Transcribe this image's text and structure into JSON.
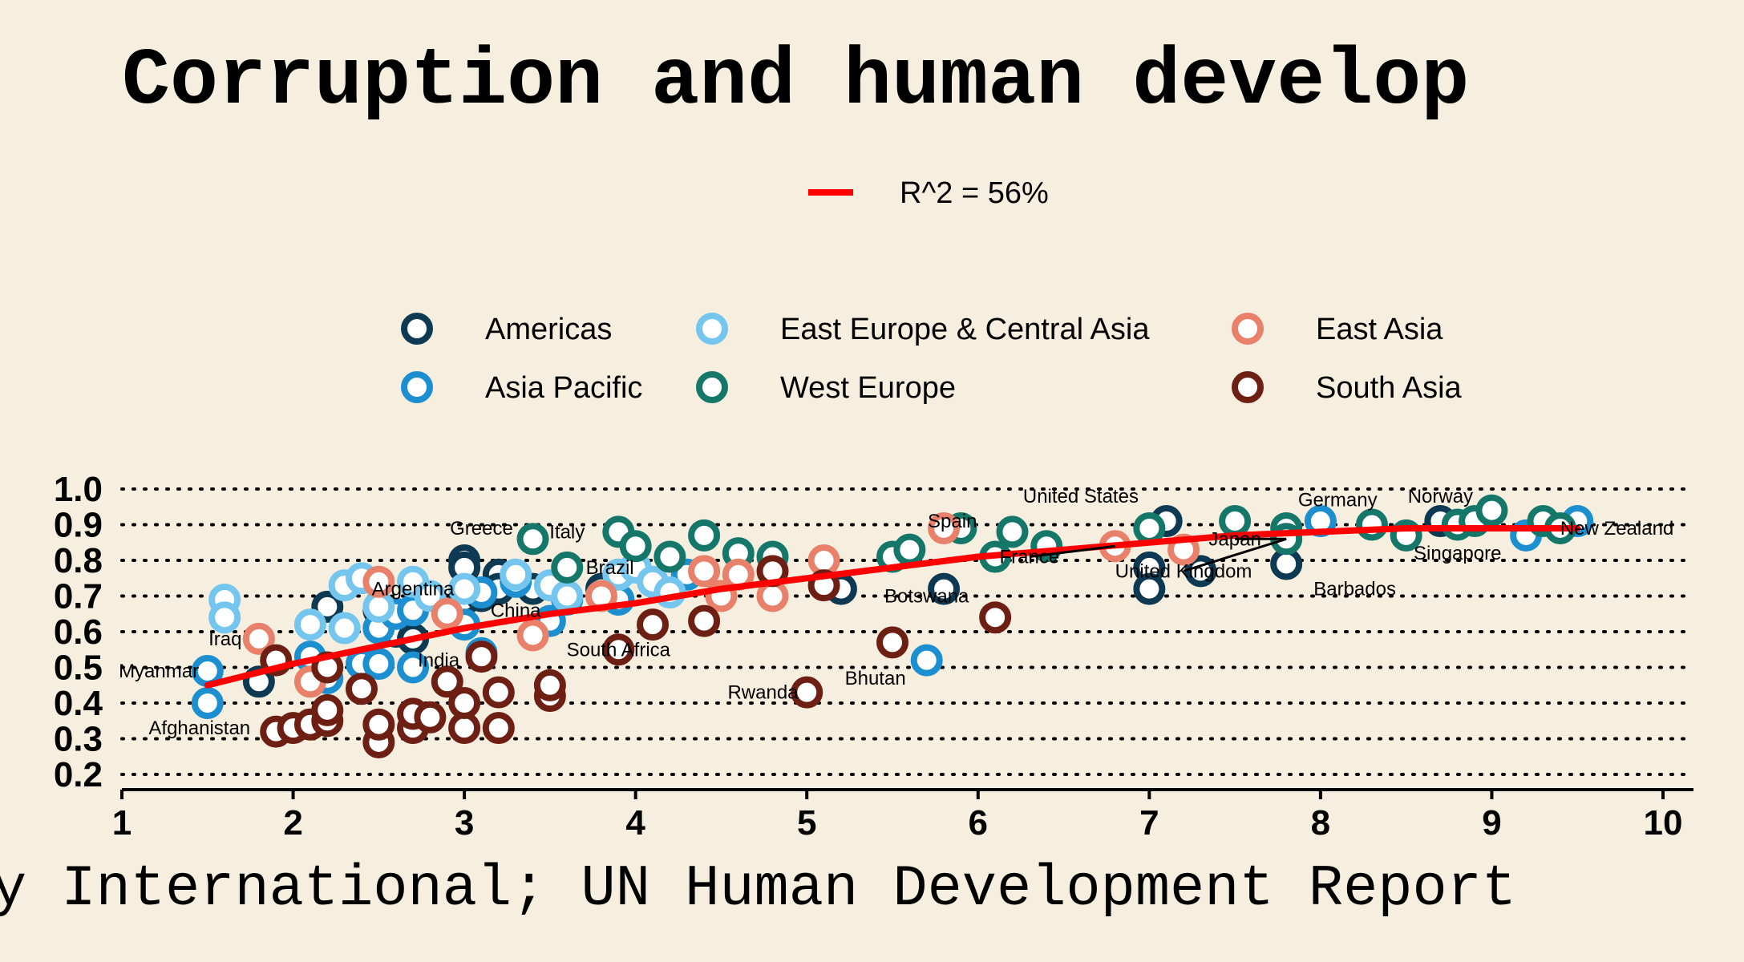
{
  "chart_data": {
    "type": "scatter",
    "title": "Corruption and human develop",
    "source": "y International; UN Human Development Report",
    "fit_label": "R^2 = 56%",
    "xlim": [
      1,
      10.2
    ],
    "ylim": [
      0.18,
      1.04
    ],
    "x_ticks": [
      1,
      2,
      3,
      4,
      5,
      6,
      7,
      8,
      9,
      10
    ],
    "y_ticks": [
      0.2,
      0.3,
      0.4,
      0.5,
      0.6,
      0.7,
      0.8,
      0.9,
      1.0
    ],
    "x_tick_labels": [
      "1",
      "2",
      "3",
      "4",
      "5",
      "6",
      "7",
      "8",
      "9",
      "10"
    ],
    "y_tick_labels": [
      "0.2",
      "0.3",
      "0.4",
      "0.5",
      "0.6",
      "0.7",
      "0.8",
      "0.9",
      "1.0"
    ],
    "grid": "horizontal-dotted",
    "legend_placement": "top-center",
    "colors": {
      "background": "#f6efe0",
      "fit_line": "#ff0000",
      "marker_fill": "#ffffff"
    },
    "series": [
      {
        "name": "Americas",
        "color": "#0d3a52",
        "points": [
          [
            2.2,
            0.67
          ],
          [
            3.0,
            0.8
          ],
          [
            3.0,
            0.78
          ],
          [
            3.0,
            0.69
          ],
          [
            3.2,
            0.76
          ],
          [
            3.4,
            0.72
          ],
          [
            3.1,
            0.7
          ],
          [
            2.6,
            0.6
          ],
          [
            2.7,
            0.58
          ],
          [
            3.2,
            0.72
          ],
          [
            3.8,
            0.72
          ],
          [
            5.2,
            0.72
          ],
          [
            5.8,
            0.72
          ],
          [
            7.1,
            0.91
          ],
          [
            7.0,
            0.78
          ],
          [
            7.0,
            0.72
          ],
          [
            7.3,
            0.77
          ],
          [
            7.8,
            0.79
          ],
          [
            8.7,
            0.91
          ],
          [
            1.8,
            0.46
          ],
          [
            2.5,
            0.66
          ]
        ]
      },
      {
        "name": "Asia Pacific",
        "color": "#1b8fd0",
        "points": [
          [
            1.5,
            0.49
          ],
          [
            1.5,
            0.4
          ],
          [
            2.1,
            0.53
          ],
          [
            2.2,
            0.47
          ],
          [
            2.4,
            0.51
          ],
          [
            2.5,
            0.51
          ],
          [
            2.5,
            0.61
          ],
          [
            2.6,
            0.65
          ],
          [
            2.7,
            0.66
          ],
          [
            2.7,
            0.5
          ],
          [
            3.0,
            0.62
          ],
          [
            3.1,
            0.71
          ],
          [
            3.1,
            0.54
          ],
          [
            3.3,
            0.74
          ],
          [
            3.5,
            0.63
          ],
          [
            3.6,
            0.69
          ],
          [
            3.9,
            0.69
          ],
          [
            4.3,
            0.76
          ],
          [
            5.7,
            0.52
          ],
          [
            8.0,
            0.91
          ],
          [
            9.2,
            0.87
          ],
          [
            9.5,
            0.91
          ]
        ]
      },
      {
        "name": "East Europe & Central Asia",
        "color": "#74c6ef",
        "points": [
          [
            1.6,
            0.69
          ],
          [
            1.6,
            0.64
          ],
          [
            2.1,
            0.62
          ],
          [
            2.3,
            0.61
          ],
          [
            2.3,
            0.73
          ],
          [
            2.4,
            0.75
          ],
          [
            2.5,
            0.67
          ],
          [
            2.7,
            0.74
          ],
          [
            2.8,
            0.7
          ],
          [
            3.0,
            0.72
          ],
          [
            3.3,
            0.76
          ],
          [
            3.5,
            0.73
          ],
          [
            3.6,
            0.7
          ],
          [
            3.9,
            0.76
          ],
          [
            4.0,
            0.78
          ],
          [
            4.1,
            0.74
          ],
          [
            4.2,
            0.71
          ]
        ]
      },
      {
        "name": "West Europe",
        "color": "#15766a",
        "points": [
          [
            3.4,
            0.86
          ],
          [
            3.6,
            0.78
          ],
          [
            3.9,
            0.88
          ],
          [
            4.0,
            0.84
          ],
          [
            4.2,
            0.81
          ],
          [
            4.4,
            0.87
          ],
          [
            4.6,
            0.82
          ],
          [
            4.8,
            0.81
          ],
          [
            5.5,
            0.81
          ],
          [
            5.6,
            0.83
          ],
          [
            5.9,
            0.89
          ],
          [
            6.1,
            0.81
          ],
          [
            6.2,
            0.88
          ],
          [
            6.4,
            0.84
          ],
          [
            7.0,
            0.89
          ],
          [
            7.5,
            0.91
          ],
          [
            7.8,
            0.89
          ],
          [
            7.8,
            0.86
          ],
          [
            8.3,
            0.9
          ],
          [
            8.5,
            0.87
          ],
          [
            8.8,
            0.9
          ],
          [
            8.9,
            0.91
          ],
          [
            9.0,
            0.94
          ],
          [
            9.3,
            0.91
          ],
          [
            9.4,
            0.89
          ]
        ]
      },
      {
        "name": "East Asia",
        "color": "#e9806a",
        "points": [
          [
            1.8,
            0.58
          ],
          [
            2.1,
            0.46
          ],
          [
            2.5,
            0.74
          ],
          [
            2.9,
            0.65
          ],
          [
            3.4,
            0.59
          ],
          [
            3.8,
            0.7
          ],
          [
            4.4,
            0.77
          ],
          [
            4.5,
            0.7
          ],
          [
            4.6,
            0.76
          ],
          [
            4.8,
            0.7
          ],
          [
            5.1,
            0.8
          ],
          [
            5.8,
            0.89
          ],
          [
            6.8,
            0.84
          ],
          [
            7.2,
            0.83
          ]
        ]
      },
      {
        "name": "South Asia",
        "color": "#6e1f14",
        "points": [
          [
            1.9,
            0.32
          ],
          [
            1.9,
            0.52
          ],
          [
            2.0,
            0.33
          ],
          [
            2.1,
            0.34
          ],
          [
            2.2,
            0.35
          ],
          [
            2.2,
            0.38
          ],
          [
            2.2,
            0.5
          ],
          [
            2.4,
            0.44
          ],
          [
            2.5,
            0.29
          ],
          [
            2.5,
            0.34
          ],
          [
            2.7,
            0.33
          ],
          [
            2.7,
            0.37
          ],
          [
            2.8,
            0.36
          ],
          [
            2.9,
            0.46
          ],
          [
            3.0,
            0.33
          ],
          [
            3.0,
            0.4
          ],
          [
            3.1,
            0.53
          ],
          [
            3.2,
            0.33
          ],
          [
            3.2,
            0.43
          ],
          [
            3.5,
            0.42
          ],
          [
            3.5,
            0.45
          ],
          [
            3.9,
            0.55
          ],
          [
            4.1,
            0.62
          ],
          [
            4.4,
            0.63
          ],
          [
            4.8,
            0.77
          ],
          [
            5.0,
            0.43
          ],
          [
            5.1,
            0.73
          ],
          [
            5.5,
            0.57
          ],
          [
            6.1,
            0.64
          ]
        ]
      }
    ],
    "fit_line": [
      [
        1.5,
        0.45
      ],
      [
        2.0,
        0.51
      ],
      [
        2.5,
        0.56
      ],
      [
        3.0,
        0.61
      ],
      [
        3.5,
        0.65
      ],
      [
        4.0,
        0.68
      ],
      [
        4.5,
        0.72
      ],
      [
        5.0,
        0.75
      ],
      [
        5.5,
        0.78
      ],
      [
        6.0,
        0.81
      ],
      [
        6.5,
        0.83
      ],
      [
        7.0,
        0.85
      ],
      [
        7.5,
        0.87
      ],
      [
        8.0,
        0.88
      ],
      [
        8.5,
        0.89
      ],
      [
        9.0,
        0.89
      ],
      [
        9.5,
        0.89
      ]
    ],
    "annotations": [
      {
        "label": "Myanmar",
        "x": 1.5,
        "y": 0.49,
        "dx": -0.05,
        "dy": 0.0,
        "anchor": "end"
      },
      {
        "label": "Afghanistan",
        "x": 1.5,
        "y": 0.4,
        "dx": 0.25,
        "dy": -0.07,
        "anchor": "end"
      },
      {
        "label": "Iraq",
        "x": 1.6,
        "y": 0.64,
        "dx": 0.1,
        "dy": -0.06,
        "anchor": "end"
      },
      {
        "label": "Argentina",
        "x": 2.5,
        "y": 0.66,
        "dx": 0.2,
        "dy": 0.06,
        "anchor": "middle"
      },
      {
        "label": "Greece",
        "x": 3.0,
        "y": 0.8,
        "dx": 0.1,
        "dy": 0.09,
        "anchor": "middle"
      },
      {
        "label": "Italy",
        "x": 3.9,
        "y": 0.88,
        "dx": -0.3,
        "dy": 0.0,
        "anchor": "middle"
      },
      {
        "label": "Brazil",
        "x": 3.6,
        "y": 0.78,
        "dx": 0.25,
        "dy": 0.0,
        "anchor": "middle"
      },
      {
        "label": "China",
        "x": 3.3,
        "y": 0.72,
        "dx": 0.0,
        "dy": -0.06,
        "anchor": "middle"
      },
      {
        "label": "India",
        "x": 2.9,
        "y": 0.46,
        "dx": -0.05,
        "dy": 0.06,
        "anchor": "middle"
      },
      {
        "label": "South Africa",
        "x": 3.9,
        "y": 0.55,
        "dx": 0.0,
        "dy": 0.0,
        "anchor": "middle"
      },
      {
        "label": "Rwanda",
        "x": 5.0,
        "y": 0.43,
        "dx": -0.05,
        "dy": 0.0,
        "anchor": "end"
      },
      {
        "label": "Bhutan",
        "x": 5.5,
        "y": 0.57,
        "dx": -0.1,
        "dy": -0.1,
        "anchor": "middle"
      },
      {
        "label": "Botswana",
        "x": 5.8,
        "y": 0.72,
        "dx": -0.1,
        "dy": -0.02,
        "anchor": "middle"
      },
      {
        "label": "Spain",
        "x": 5.9,
        "y": 0.89,
        "dx": -0.05,
        "dy": 0.02,
        "anchor": "middle"
      },
      {
        "label": "France",
        "x": 6.8,
        "y": 0.84,
        "dx": -0.5,
        "dy": -0.03,
        "anchor": "middle",
        "leader": true
      },
      {
        "label": "United States",
        "x": 7.1,
        "y": 0.91,
        "dx": -0.5,
        "dy": 0.07,
        "anchor": "middle"
      },
      {
        "label": "Japan",
        "x": 7.8,
        "y": 0.86,
        "dx": -0.3,
        "dy": 0.0,
        "anchor": "middle",
        "leader": true
      },
      {
        "label": "United Kingdom",
        "x": 7.8,
        "y": 0.86,
        "dx": -0.6,
        "dy": -0.09,
        "anchor": "middle",
        "leader": true
      },
      {
        "label": "Barbados",
        "x": 7.8,
        "y": 0.79,
        "dx": 0.4,
        "dy": -0.07,
        "anchor": "middle"
      },
      {
        "label": "Germany",
        "x": 8.0,
        "y": 0.91,
        "dx": 0.1,
        "dy": 0.06,
        "anchor": "middle"
      },
      {
        "label": "Norway",
        "x": 8.7,
        "y": 0.91,
        "dx": 0.0,
        "dy": 0.07,
        "anchor": "middle"
      },
      {
        "label": "Singapore",
        "x": 8.8,
        "y": 0.9,
        "dx": 0.0,
        "dy": -0.08,
        "anchor": "middle"
      },
      {
        "label": "New Zealand",
        "x": 9.5,
        "y": 0.91,
        "dx": -0.1,
        "dy": -0.02,
        "anchor": "start"
      }
    ]
  }
}
